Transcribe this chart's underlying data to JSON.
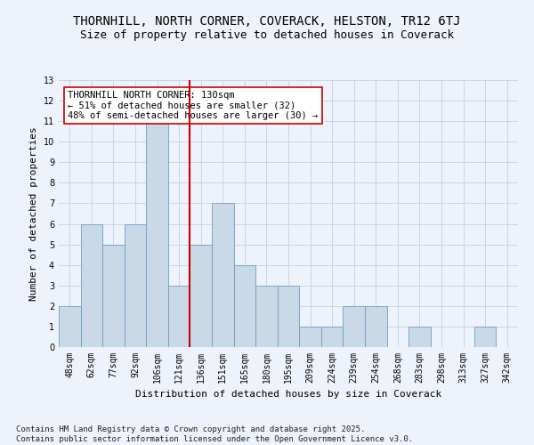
{
  "title": "THORNHILL, NORTH CORNER, COVERACK, HELSTON, TR12 6TJ",
  "subtitle": "Size of property relative to detached houses in Coverack",
  "xlabel": "Distribution of detached houses by size in Coverack",
  "ylabel": "Number of detached properties",
  "categories": [
    "48sqm",
    "62sqm",
    "77sqm",
    "92sqm",
    "106sqm",
    "121sqm",
    "136sqm",
    "151sqm",
    "165sqm",
    "180sqm",
    "195sqm",
    "209sqm",
    "224sqm",
    "239sqm",
    "254sqm",
    "268sqm",
    "283sqm",
    "298sqm",
    "313sqm",
    "327sqm",
    "342sqm"
  ],
  "values": [
    2,
    6,
    5,
    6,
    11,
    3,
    5,
    7,
    4,
    3,
    3,
    1,
    1,
    2,
    2,
    0,
    1,
    0,
    0,
    1,
    0
  ],
  "bar_color": "#c9d9e8",
  "bar_edge_color": "#6a9ec5",
  "grid_color": "#c8d4e8",
  "background_color": "#eef2fa",
  "vline_color": "#cc0000",
  "annotation_text": "THORNHILL NORTH CORNER: 130sqm\n← 51% of detached houses are smaller (32)\n48% of semi-detached houses are larger (30) →",
  "annotation_box_color": "#ffffff",
  "annotation_box_edge": "#cc0000",
  "ylim": [
    0,
    13
  ],
  "yticks": [
    0,
    1,
    2,
    3,
    4,
    5,
    6,
    7,
    8,
    9,
    10,
    11,
    12,
    13
  ],
  "footer": "Contains HM Land Registry data © Crown copyright and database right 2025.\nContains public sector information licensed under the Open Government Licence v3.0.",
  "title_fontsize": 10,
  "subtitle_fontsize": 9,
  "axis_label_fontsize": 8,
  "tick_fontsize": 7,
  "annotation_fontsize": 7.5,
  "footer_fontsize": 6.5
}
